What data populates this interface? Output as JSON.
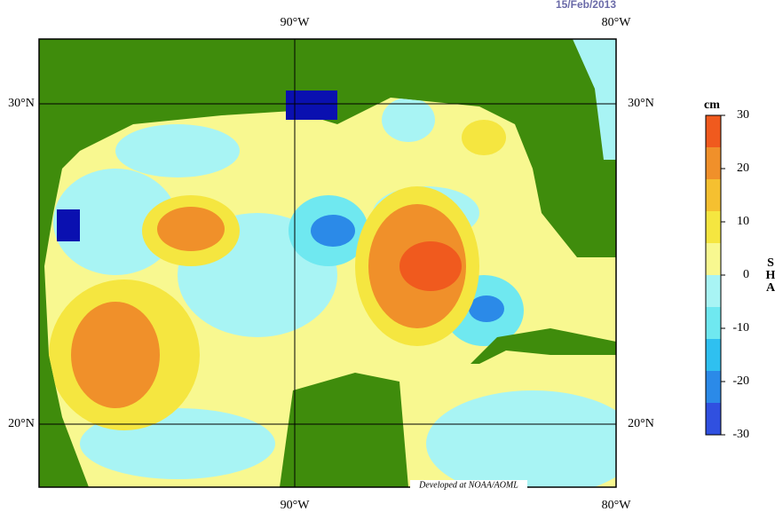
{
  "header": {
    "date": "15/Feb/2013"
  },
  "map": {
    "lon_labels": [
      "90°W",
      "80°W"
    ],
    "lat_labels": [
      "30°N",
      "20°N"
    ],
    "credit": "Developed at NOAA/AOML"
  },
  "colorbar": {
    "unit": "cm",
    "title": [
      "S",
      "H",
      "A"
    ],
    "ticks": [
      30,
      20,
      10,
      0,
      -10,
      -20,
      -30
    ],
    "colors": [
      "#3050e0",
      "#2b8ae8",
      "#2fc0f0",
      "#6fe8f0",
      "#a8f4f4",
      "#f8f890",
      "#f5e640",
      "#f5c030",
      "#f0902a",
      "#f05a1e"
    ]
  }
}
